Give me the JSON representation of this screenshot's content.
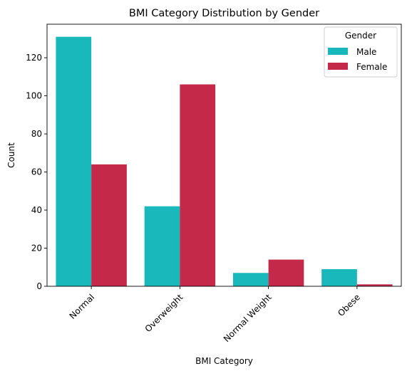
{
  "chart_data": {
    "type": "bar",
    "title": "BMI Category Distribution by Gender",
    "xlabel": "BMI Category",
    "ylabel": "Count",
    "categories": [
      "Normal",
      "Overweight",
      "Normal Weight",
      "Obese"
    ],
    "series": [
      {
        "name": "Male",
        "color": "#19B8BB",
        "values": [
          131,
          42,
          7,
          9
        ]
      },
      {
        "name": "Female",
        "color": "#C4294A",
        "values": [
          64,
          106,
          14,
          1
        ]
      }
    ],
    "ylim": [
      0,
      137.6
    ],
    "yticks": [
      0,
      20,
      40,
      60,
      80,
      100,
      120
    ],
    "legend": {
      "title": "Gender",
      "placement": "top-right"
    },
    "grid": false
  }
}
